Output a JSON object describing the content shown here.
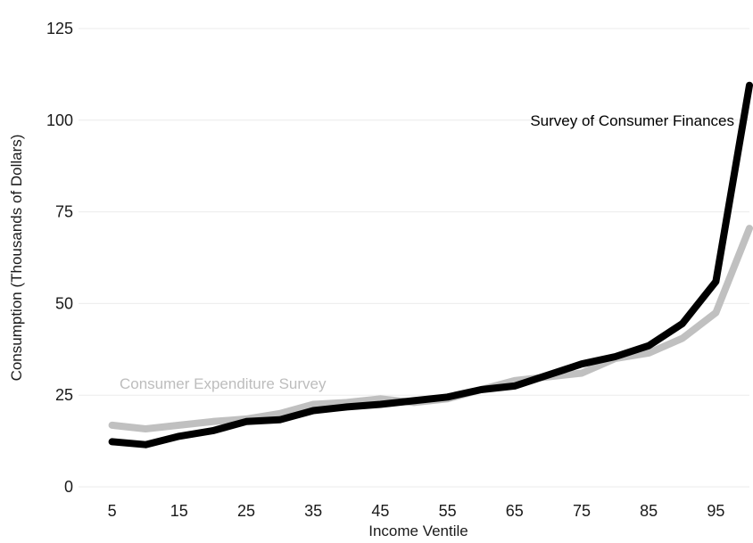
{
  "chart_data": {
    "type": "line",
    "title": "",
    "xlabel": "Income Ventile",
    "ylabel": "Consumption (Thousands of Dollars)",
    "x": [
      5,
      10,
      15,
      20,
      25,
      30,
      35,
      40,
      45,
      50,
      55,
      60,
      65,
      70,
      75,
      80,
      85,
      90,
      95,
      100
    ],
    "xticks": [
      5,
      15,
      25,
      35,
      45,
      55,
      65,
      75,
      85,
      95
    ],
    "yticks": [
      0,
      25,
      50,
      75,
      100,
      125
    ],
    "xlim": [
      0,
      100
    ],
    "ylim": [
      0,
      125
    ],
    "grid": "horizontal",
    "series": [
      {
        "name": "Survey of Consumer Finances",
        "color": "#000000",
        "values": [
          12.3,
          11.5,
          13.8,
          15.3,
          17.8,
          18.3,
          20.8,
          21.8,
          22.5,
          23.5,
          24.5,
          26.5,
          27.5,
          30.5,
          33.5,
          35.5,
          38.5,
          44.5,
          56.0,
          109.5
        ]
      },
      {
        "name": "Consumer Expenditure Survey",
        "color": "#c0c0c0",
        "values": [
          16.8,
          15.8,
          16.8,
          17.8,
          18.5,
          20.0,
          22.5,
          23.0,
          24.0,
          23.0,
          24.0,
          26.5,
          29.0,
          30.0,
          31.0,
          35.0,
          36.5,
          40.5,
          47.5,
          70.5
        ]
      }
    ],
    "annotations": [
      {
        "text": "Survey of Consumer Finances",
        "series": 0,
        "color": "#000000"
      },
      {
        "text": "Consumer Expenditure Survey",
        "series": 1,
        "color": "#bdbdbd"
      }
    ]
  }
}
